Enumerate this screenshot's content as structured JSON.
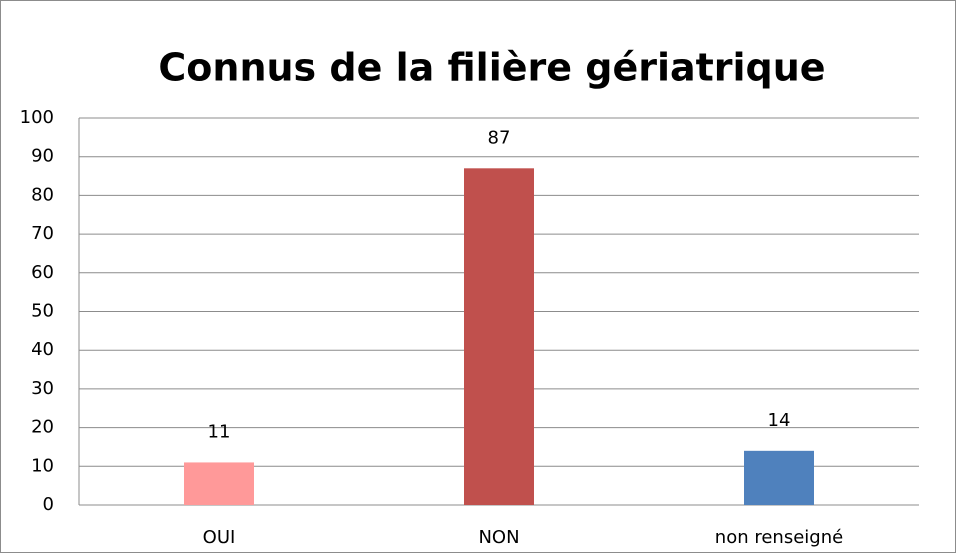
{
  "chart_data": {
    "type": "bar",
    "title": "Connus de la filière gériatrique",
    "categories": [
      "OUI",
      "NON",
      "non renseigné"
    ],
    "values": [
      11,
      87,
      14
    ],
    "colors": [
      "#ff9999",
      "#c0504d",
      "#4f81bd"
    ],
    "ylim": [
      0,
      100
    ],
    "yticks": [
      0,
      10,
      20,
      30,
      40,
      50,
      60,
      70,
      80,
      90,
      100
    ],
    "grid": true
  }
}
